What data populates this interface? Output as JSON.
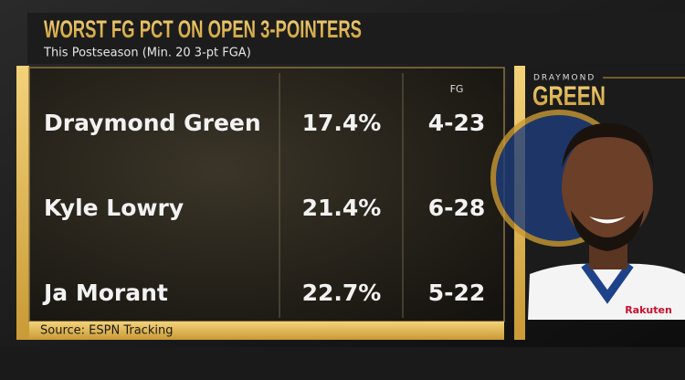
{
  "header": {
    "title": "WORST FG PCT ON OPEN 3-POINTERS",
    "subtitle": "This Postseason (Min. 20 3-pt FGA)"
  },
  "table": {
    "columns": [
      "FG"
    ],
    "rows": [
      [
        "Draymond Green",
        "17.4%",
        "4-23"
      ],
      [
        "Kyle Lowry",
        "21.4%",
        "6-28"
      ],
      [
        "Ja Morant",
        "22.7%",
        "5-22"
      ]
    ]
  },
  "source": "Source: ESPN Tracking",
  "player": {
    "first": "DRAYMOND",
    "last": "GREEN",
    "jersey": "Rakuten"
  }
}
